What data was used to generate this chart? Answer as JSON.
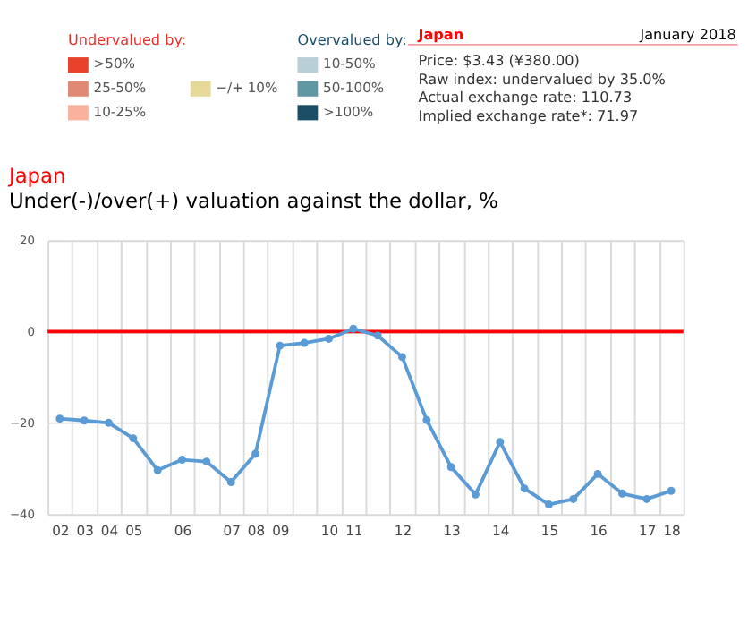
{
  "chart_data": [
    {
      "type": "other",
      "categories": [
        ">50%",
        "25-50%",
        "10-25%",
        "−/+ 10%",
        "10-50%",
        "50-100%",
        ">100%"
      ],
      "colors": [
        "#e8412c",
        "#e08a76",
        "#f9b39d",
        "#e6d898",
        "#b9cfd8",
        "#5f97a3",
        "#1a4e66"
      ],
      "annotations": [
        "Undervalued by:",
        "Overvalued by:",
        "Japan",
        "January 2018",
        "Price: $3.43 (¥380.00)",
        "Raw index: undervalued by 35.0%",
        "Actual exchange rate: 110.73",
        "Implied exchange rate*: 71.97"
      ]
    },
    {
      "type": "line",
      "title": "Japan",
      "subtitle": "Under(-)/over(+) valuation against the dollar, %",
      "categories": [
        "02",
        "03",
        "04",
        "05",
        null,
        "06",
        null,
        "07",
        "08",
        "09",
        null,
        "10",
        "11",
        null,
        "12",
        null,
        "13",
        null,
        "14",
        null,
        "15",
        null,
        "16",
        null,
        "17",
        "18"
      ],
      "series": [
        {
          "color": "#5b9bd5",
          "values": [
            -19.1,
            -19.5,
            -20,
            -23.4,
            -30.4,
            -28.1,
            -28.5,
            -33,
            -26.8,
            -3.1,
            -2.5,
            -1.6,
            0.6,
            -0.9,
            -5.6,
            -19.4,
            -29.7,
            -35.7,
            -24.2,
            -34.4,
            -37.9,
            -36.7,
            -31.2,
            -35.5,
            -36.7,
            -34.9
          ]
        }
      ],
      "ylim": [
        -40,
        20
      ],
      "yticks": [
        -40,
        -20,
        0,
        20
      ],
      "ref_lines": [
        {
          "axis": "y",
          "value": 0,
          "color": "#ff0000"
        }
      ],
      "grid": true,
      "marker": "circle",
      "line_style": "solid"
    }
  ]
}
